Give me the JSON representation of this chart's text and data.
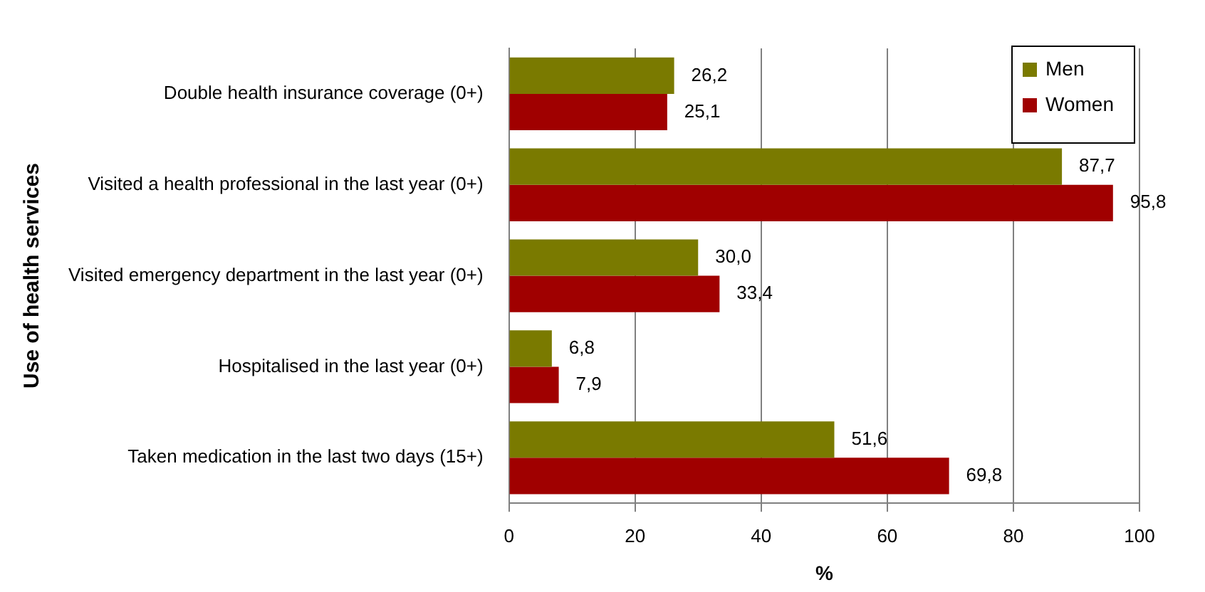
{
  "chart_data": {
    "type": "bar",
    "orientation": "horizontal",
    "ylabel": "Use of health services",
    "xlabel": "%",
    "categories": [
      "Double health insurance coverage (0+)",
      "Visited a health professional in the last year (0+)",
      "Visited emergency department in the last year (0+)",
      "Hospitalised in the last year (0+)",
      "Taken medication in the last two days (15+)"
    ],
    "series": [
      {
        "name": "Men",
        "color": "#7a7a00",
        "values": [
          26.2,
          87.7,
          30.0,
          6.8,
          51.6
        ],
        "value_labels": [
          "26,2",
          "87,7",
          "30,0",
          "6,8",
          "51,6"
        ]
      },
      {
        "name": "Women",
        "color": "#a00000",
        "values": [
          25.1,
          95.8,
          33.4,
          7.9,
          69.8
        ],
        "value_labels": [
          "25,1",
          "95,8",
          "33,4",
          "7,9",
          "69,8"
        ]
      }
    ],
    "xlim": [
      0,
      100
    ],
    "xticks": [
      0,
      20,
      40,
      60,
      80,
      100
    ],
    "grid": "x",
    "legend": "top right"
  }
}
